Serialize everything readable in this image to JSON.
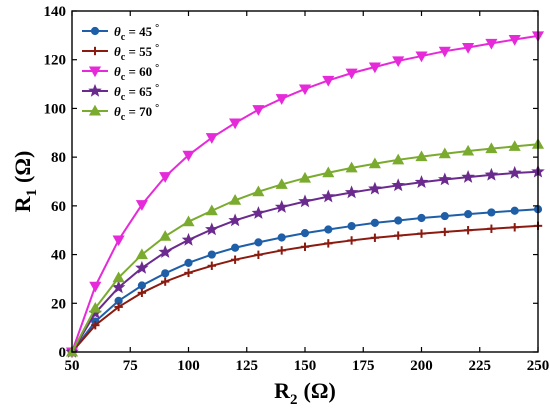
{
  "chart_data": {
    "type": "line",
    "title": "",
    "xlabel": {
      "main": "R",
      "sub": "2",
      "unit": "(Ω)"
    },
    "ylabel": {
      "main": "R",
      "sub": "1",
      "unit": "(Ω)"
    },
    "xlim": [
      50,
      250
    ],
    "ylim": [
      0,
      140
    ],
    "xticks": [
      50,
      75,
      100,
      125,
      150,
      175,
      200,
      225,
      250
    ],
    "yticks": [
      0,
      20,
      40,
      60,
      80,
      100,
      120,
      140
    ],
    "grid": false,
    "legend_position": "top-left",
    "x": [
      50,
      60,
      70,
      80,
      90,
      100,
      110,
      120,
      130,
      140,
      150,
      160,
      170,
      180,
      190,
      200,
      210,
      220,
      230,
      240,
      250
    ],
    "series": [
      {
        "name": "θc = 45°",
        "name_parts": {
          "symbol": "θ",
          "sub": "c",
          "rest": " = 45",
          "deg": "°"
        },
        "color": "#1f5fa8",
        "marker": "circle",
        "values": [
          0,
          12.5,
          21.0,
          27.3,
          32.3,
          36.6,
          40.0,
          42.8,
          45.0,
          47.0,
          48.8,
          50.3,
          51.7,
          53.0,
          54.0,
          55.0,
          55.8,
          56.6,
          57.3,
          58.0,
          58.6
        ]
      },
      {
        "name": "θc = 55°",
        "name_parts": {
          "symbol": "θ",
          "sub": "c",
          "rest": " = 55",
          "deg": "°"
        },
        "color": "#8b1a10",
        "marker": "plus",
        "values": [
          0,
          11.0,
          18.5,
          24.3,
          28.9,
          32.5,
          35.4,
          37.9,
          39.9,
          41.7,
          43.2,
          44.6,
          45.8,
          46.9,
          47.8,
          48.6,
          49.3,
          50.0,
          50.6,
          51.2,
          51.8
        ]
      },
      {
        "name": "θc = 60°",
        "name_parts": {
          "symbol": "θ",
          "sub": "c",
          "rest": " = 60",
          "deg": "°"
        },
        "color": "#e62ad9",
        "marker": "triangle-down",
        "values": [
          0,
          27.0,
          46.0,
          60.5,
          72.0,
          80.8,
          88.0,
          94.0,
          99.5,
          104.0,
          108.0,
          111.5,
          114.5,
          117.0,
          119.5,
          121.5,
          123.5,
          125.0,
          126.7,
          128.3,
          129.8
        ]
      },
      {
        "name": "θc = 65°",
        "name_parts": {
          "symbol": "θ",
          "sub": "c",
          "rest": " = 65",
          "deg": "°"
        },
        "color": "#6b2b8e",
        "marker": "star",
        "values": [
          0,
          16.0,
          26.5,
          34.5,
          41.0,
          46.0,
          50.3,
          54.0,
          57.0,
          59.5,
          61.8,
          63.8,
          65.5,
          67.0,
          68.4,
          69.7,
          70.8,
          71.8,
          72.7,
          73.5,
          74.0
        ]
      },
      {
        "name": "θc = 70°",
        "name_parts": {
          "symbol": "θ",
          "sub": "c",
          "rest": " = 70",
          "deg": "°"
        },
        "color": "#7aab2e",
        "marker": "triangle-up",
        "values": [
          0,
          18.0,
          30.5,
          40.0,
          47.5,
          53.5,
          58.0,
          62.3,
          65.8,
          68.8,
          71.4,
          73.6,
          75.6,
          77.3,
          78.9,
          80.2,
          81.4,
          82.5,
          83.5,
          84.4,
          85.3
        ]
      }
    ]
  }
}
